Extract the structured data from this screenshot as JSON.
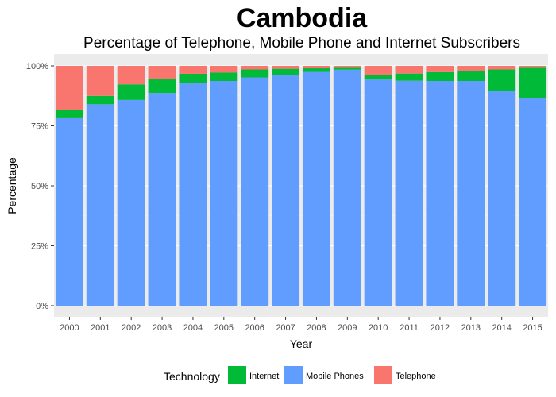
{
  "chart_data": {
    "type": "bar",
    "stacked": true,
    "percent": true,
    "title": "Cambodia",
    "subtitle": "Percentage of Telephone, Mobile Phone and Internet Subscribers",
    "xlabel": "Year",
    "ylabel": "Percentage",
    "ylim": [
      0,
      1
    ],
    "yticks": [
      "0%",
      "25%",
      "50%",
      "75%",
      "100%"
    ],
    "grid": true,
    "legend_position": "bottom",
    "legend_title": "Technology",
    "categories": [
      "2000",
      "2001",
      "2002",
      "2003",
      "2004",
      "2005",
      "2006",
      "2007",
      "2008",
      "2009",
      "2010",
      "2011",
      "2012",
      "2013",
      "2014",
      "2015"
    ],
    "series": [
      {
        "name": "Mobile Phones",
        "color": "#619CFF",
        "values": [
          0.785,
          0.84,
          0.858,
          0.887,
          0.927,
          0.937,
          0.952,
          0.963,
          0.975,
          0.984,
          0.943,
          0.938,
          0.937,
          0.937,
          0.895,
          0.867
        ]
      },
      {
        "name": "Internet",
        "color": "#00BA38",
        "values": [
          0.032,
          0.035,
          0.065,
          0.057,
          0.04,
          0.035,
          0.033,
          0.025,
          0.015,
          0.008,
          0.018,
          0.03,
          0.037,
          0.043,
          0.09,
          0.125
        ]
      },
      {
        "name": "Telephone",
        "color": "#F8766D",
        "values": [
          0.183,
          0.125,
          0.077,
          0.056,
          0.033,
          0.028,
          0.015,
          0.012,
          0.01,
          0.008,
          0.039,
          0.032,
          0.026,
          0.02,
          0.015,
          0.008
        ]
      }
    ],
    "legend_order": [
      "Internet",
      "Mobile Phones",
      "Telephone"
    ],
    "colors": {
      "panel": "#EBEBEB",
      "grid_major": "#FFFFFF",
      "grid_minor": "#F5F5F5"
    }
  }
}
